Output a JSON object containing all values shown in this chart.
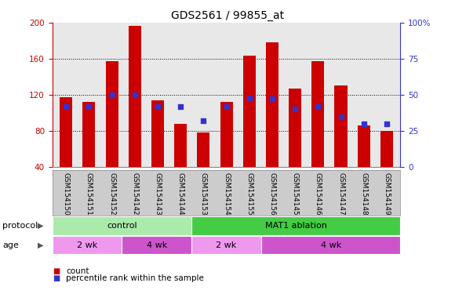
{
  "title": "GDS2561 / 99855_at",
  "categories": [
    "GSM154150",
    "GSM154151",
    "GSM154152",
    "GSM154142",
    "GSM154143",
    "GSM154144",
    "GSM154153",
    "GSM154154",
    "GSM154155",
    "GSM154156",
    "GSM154145",
    "GSM154146",
    "GSM154147",
    "GSM154148",
    "GSM154149"
  ],
  "count_values": [
    117,
    112,
    157,
    196,
    114,
    88,
    78,
    112,
    163,
    178,
    127,
    157,
    130,
    86,
    80
  ],
  "percentile_values": [
    42,
    42,
    50,
    50,
    42,
    42,
    32,
    42,
    48,
    47,
    40,
    42,
    35,
    30,
    30
  ],
  "ylim_left": [
    40,
    200
  ],
  "ylim_right": [
    0,
    100
  ],
  "yticks_left": [
    40,
    80,
    120,
    160,
    200
  ],
  "yticks_right": [
    0,
    25,
    50,
    75,
    100
  ],
  "ytick_labels_right": [
    "0",
    "25",
    "50",
    "75",
    "100%"
  ],
  "bar_color": "#cc0000",
  "dot_color": "#3333cc",
  "protocol_groups": [
    {
      "label": "control",
      "start": 0,
      "end": 6,
      "color": "#aaeaaa"
    },
    {
      "label": "MAT1 ablation",
      "start": 6,
      "end": 15,
      "color": "#44cc44"
    }
  ],
  "age_groups": [
    {
      "label": "2 wk",
      "start": 0,
      "end": 3,
      "color": "#ee99ee"
    },
    {
      "label": "4 wk",
      "start": 3,
      "end": 6,
      "color": "#cc55cc"
    },
    {
      "label": "2 wk",
      "start": 6,
      "end": 9,
      "color": "#ee99ee"
    },
    {
      "label": "4 wk",
      "start": 9,
      "end": 15,
      "color": "#cc55cc"
    }
  ],
  "protocol_label": "protocol",
  "age_label": "age",
  "legend_count": "count",
  "legend_percentile": "percentile rank within the sample",
  "title_fontsize": 10,
  "axis_color_left": "#cc0000",
  "axis_color_right": "#3333cc",
  "plot_bg": "#e8e8e8",
  "grid_color": "#444444",
  "bottom_label_bg": "#cccccc"
}
